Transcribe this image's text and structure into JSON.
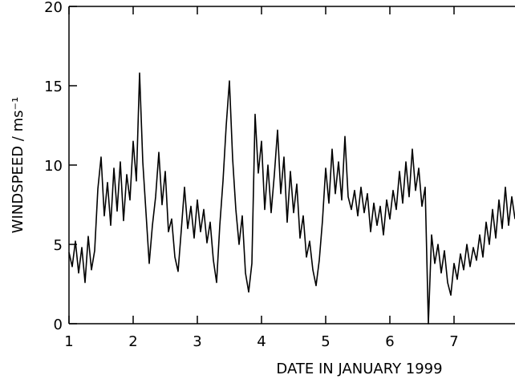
{
  "chart_data": {
    "type": "line",
    "x_label": "DATE IN JANUARY 1999",
    "y_label": "WINDSPEED / ms⁻¹",
    "x": [
      1.0,
      1.05,
      1.1,
      1.15,
      1.2,
      1.25,
      1.3,
      1.35,
      1.4,
      1.45,
      1.5,
      1.55,
      1.6,
      1.65,
      1.7,
      1.75,
      1.8,
      1.85,
      1.9,
      1.95,
      2.0,
      2.05,
      2.1,
      2.15,
      2.2,
      2.25,
      2.3,
      2.35,
      2.4,
      2.45,
      2.5,
      2.55,
      2.6,
      2.65,
      2.7,
      2.75,
      2.8,
      2.85,
      2.9,
      2.95,
      3.0,
      3.05,
      3.1,
      3.15,
      3.2,
      3.25,
      3.3,
      3.35,
      3.4,
      3.45,
      3.5,
      3.55,
      3.6,
      3.65,
      3.7,
      3.75,
      3.8,
      3.85,
      3.9,
      3.95,
      4.0,
      4.05,
      4.1,
      4.15,
      4.2,
      4.25,
      4.3,
      4.35,
      4.4,
      4.45,
      4.5,
      4.55,
      4.6,
      4.65,
      4.7,
      4.75,
      4.8,
      4.85,
      4.9,
      4.95,
      5.0,
      5.05,
      5.1,
      5.15,
      5.2,
      5.25,
      5.3,
      5.35,
      5.4,
      5.45,
      5.5,
      5.55,
      5.6,
      5.65,
      5.7,
      5.75,
      5.8,
      5.85,
      5.9,
      5.95,
      6.0,
      6.05,
      6.1,
      6.15,
      6.2,
      6.25,
      6.3,
      6.35,
      6.4,
      6.45,
      6.5,
      6.55,
      6.6,
      6.65,
      6.7,
      6.75,
      6.8,
      6.85,
      6.9,
      6.95,
      7.0,
      7.05,
      7.1,
      7.15,
      7.2,
      7.25,
      7.3,
      7.35,
      7.4,
      7.45,
      7.5,
      7.55,
      7.6,
      7.65,
      7.7,
      7.75,
      7.8,
      7.85,
      7.9,
      7.95
    ],
    "series": [
      {
        "color": "#000000",
        "values": [
          4.5,
          3.6,
          5.2,
          3.2,
          4.8,
          2.6,
          5.5,
          3.4,
          4.6,
          8.5,
          10.5,
          6.8,
          8.9,
          6.2,
          9.8,
          7.1,
          10.2,
          6.5,
          9.4,
          7.8,
          11.5,
          9.0,
          15.8,
          10.2,
          7.0,
          3.8,
          6.2,
          8.0,
          10.8,
          7.5,
          9.6,
          5.8,
          6.6,
          4.2,
          3.3,
          5.9,
          8.6,
          6.0,
          7.4,
          5.4,
          7.8,
          5.8,
          7.2,
          5.1,
          6.4,
          4.0,
          2.6,
          6.2,
          9.0,
          12.5,
          15.3,
          10.4,
          7.2,
          5.0,
          6.8,
          3.2,
          2.0,
          3.8,
          13.2,
          9.5,
          11.5,
          7.2,
          10.0,
          7.0,
          9.4,
          12.2,
          8.2,
          10.5,
          6.4,
          9.6,
          7.0,
          8.8,
          5.4,
          6.8,
          4.2,
          5.2,
          3.4,
          2.4,
          4.0,
          6.5,
          9.8,
          7.6,
          11.0,
          8.2,
          10.2,
          7.8,
          11.8,
          8.0,
          7.2,
          8.4,
          6.8,
          8.6,
          7.0,
          8.2,
          5.8,
          7.6,
          6.2,
          7.4,
          5.6,
          7.8,
          6.6,
          8.4,
          7.2,
          9.6,
          7.6,
          10.2,
          8.0,
          11.0,
          8.4,
          9.8,
          7.4,
          8.6,
          0,
          5.6,
          3.8,
          5.0,
          3.2,
          4.6,
          2.6,
          1.8,
          3.8,
          2.8,
          4.4,
          3.4,
          5.0,
          3.6,
          4.8,
          4.0,
          5.6,
          4.2,
          6.4,
          5.0,
          7.2,
          5.4,
          7.8,
          6.0,
          8.6,
          6.2,
          8.0,
          6.6
        ]
      }
    ],
    "xlim": [
      1,
      7.95
    ],
    "ylim": [
      0,
      20
    ],
    "xticks": [
      1,
      2,
      3,
      4,
      5,
      6,
      7
    ],
    "yticks": [
      0,
      5,
      10,
      15,
      20
    ]
  }
}
